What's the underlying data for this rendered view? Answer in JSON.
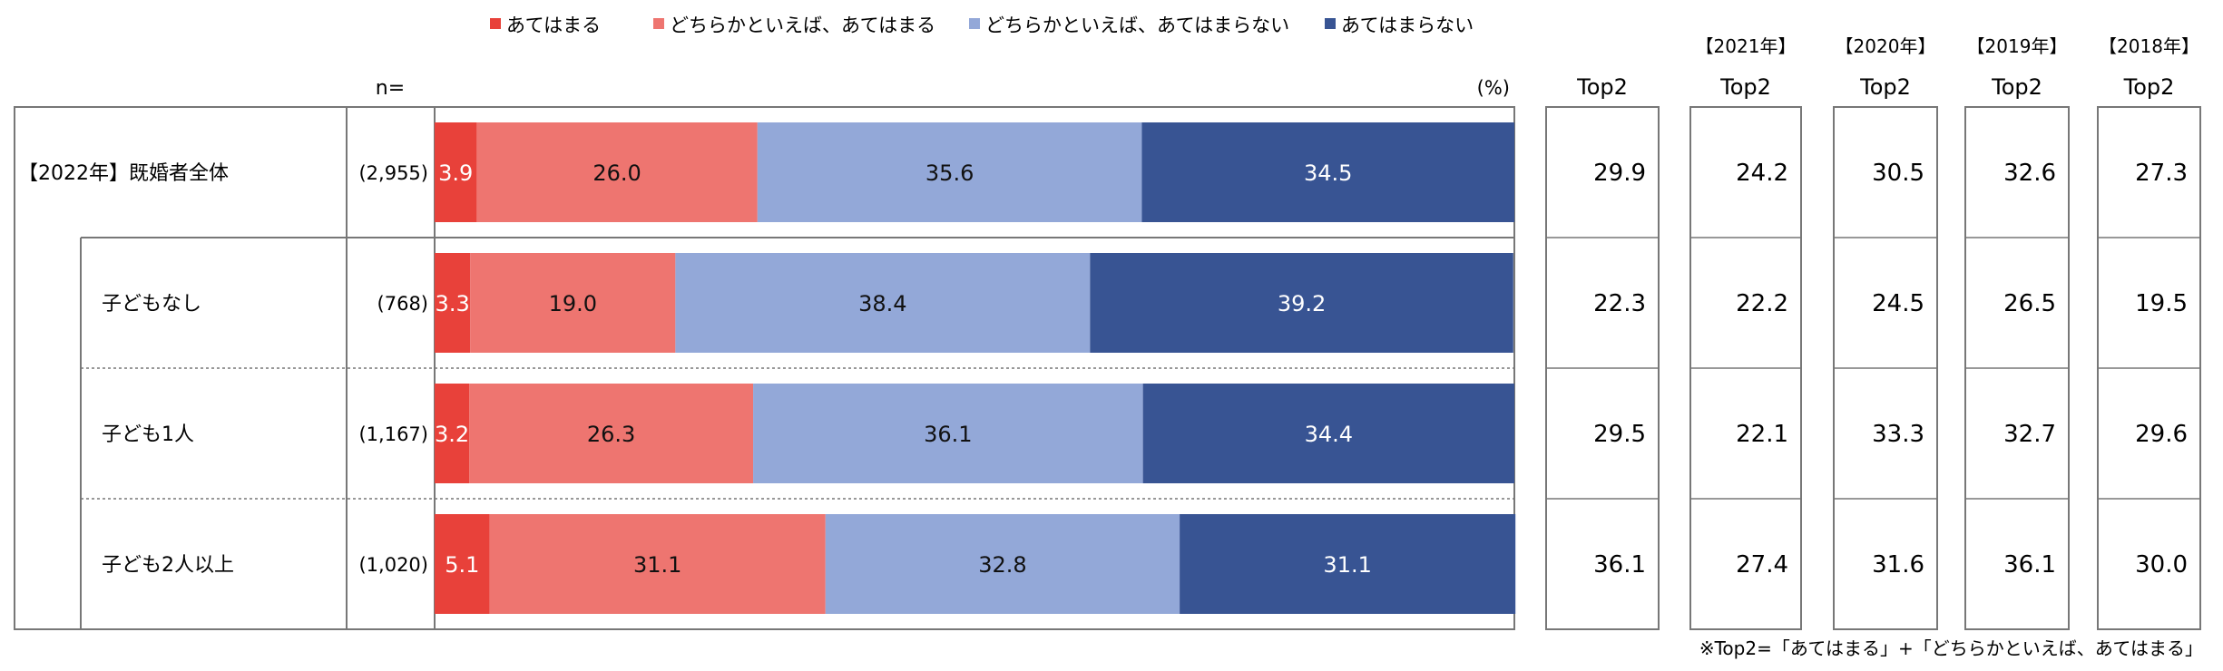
{
  "legend": [
    {
      "label": "あてはまる",
      "color": "#e8413a"
    },
    {
      "label": "どちらかといえば、あてはまる",
      "color": "#ee7570"
    },
    {
      "label": "どちらかといえば、あてはまらない",
      "color": "#93a8d8"
    },
    {
      "label": "あてはまらない",
      "color": "#385493"
    }
  ],
  "n_label": "n=",
  "percent_label": "(%)",
  "footnote": "※Top2=「あてはまる」+「どちらかといえば、あてはまる」",
  "chart_data": {
    "type": "bar",
    "stacked": true,
    "orientation": "horizontal",
    "xlim": [
      0,
      100
    ],
    "unit": "%",
    "categories": [
      "【2022年】既婚者全体",
      "子どもなし",
      "子ども1人",
      "子ども2人以上"
    ],
    "n": [
      "(2,955)",
      "(768)",
      "(1,167)",
      "(1,020)"
    ],
    "series": [
      {
        "name": "あてはまる",
        "color": "#e8413a",
        "values": [
          3.9,
          3.3,
          3.2,
          5.1
        ]
      },
      {
        "name": "どちらかといえば、あてはまる",
        "color": "#ee7570",
        "values": [
          26.0,
          19.0,
          26.3,
          31.1
        ]
      },
      {
        "name": "どちらかといえば、あてはまらない",
        "color": "#93a8d8",
        "values": [
          35.6,
          38.4,
          36.1,
          32.8
        ]
      },
      {
        "name": "あてはまらない",
        "color": "#385493",
        "values": [
          34.5,
          39.2,
          34.4,
          31.1
        ]
      }
    ],
    "top2_columns": [
      {
        "year_label": "",
        "header": "Top2",
        "values": [
          29.9,
          22.3,
          29.5,
          36.1
        ]
      },
      {
        "year_label": "【2021年】",
        "header": "Top2",
        "values": [
          24.2,
          22.2,
          22.1,
          27.4
        ]
      },
      {
        "year_label": "【2020年】",
        "header": "Top2",
        "values": [
          30.5,
          24.5,
          33.3,
          31.6
        ]
      },
      {
        "year_label": "【2019年】",
        "header": "Top2",
        "values": [
          32.6,
          26.5,
          32.7,
          36.1
        ]
      },
      {
        "year_label": "【2018年】",
        "header": "Top2",
        "values": [
          27.3,
          19.5,
          29.6,
          30.0
        ]
      }
    ]
  }
}
